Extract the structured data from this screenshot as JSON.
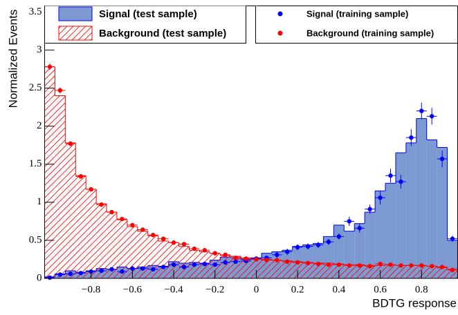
{
  "chart_data": {
    "type": "histogram",
    "x_label": "BDTG response",
    "y_label": "Normalized Events",
    "bins": [
      -1.025,
      -0.975,
      -0.925,
      -0.875,
      -0.825,
      -0.775,
      -0.725,
      -0.675,
      -0.625,
      -0.575,
      -0.525,
      -0.475,
      -0.425,
      -0.375,
      -0.325,
      -0.275,
      -0.225,
      -0.175,
      -0.125,
      -0.075,
      -0.025,
      0.025,
      0.075,
      0.125,
      0.175,
      0.225,
      0.275,
      0.325,
      0.375,
      0.425,
      0.475,
      0.525,
      0.575,
      0.625,
      0.675,
      0.725,
      0.775,
      0.825,
      0.875,
      0.925,
      0.975
    ],
    "xlim": [
      -1.025,
      0.975
    ],
    "ylim": [
      0,
      3.58
    ],
    "xticks": [
      {
        "value": -0.8,
        "label": "−0.8"
      },
      {
        "value": -0.6,
        "label": "−0.6"
      },
      {
        "value": -0.4,
        "label": "−0.4"
      },
      {
        "value": -0.2,
        "label": "−0.2"
      },
      0,
      0.2,
      0.4,
      0.6,
      0.8
    ],
    "yticks": [
      0,
      0.5,
      1,
      1.5,
      2,
      2.5,
      3,
      3.5
    ],
    "series": [
      {
        "name": "Signal (test sample)",
        "style": "filled",
        "color": "#7d99d1",
        "edge_color": "#0000ee",
        "values": [
          0.02,
          0.06,
          0.1,
          0.08,
          0.1,
          0.13,
          0.12,
          0.15,
          0.13,
          0.15,
          0.17,
          0.16,
          0.22,
          0.2,
          0.21,
          0.2,
          0.24,
          0.28,
          0.29,
          0.25,
          0.27,
          0.33,
          0.35,
          0.37,
          0.42,
          0.44,
          0.46,
          0.55,
          0.7,
          0.62,
          0.72,
          0.87,
          1.15,
          1.25,
          1.65,
          1.78,
          2.1,
          1.82,
          1.72,
          0.5
        ]
      },
      {
        "name": "Background (test sample)",
        "style": "hatched",
        "color": "#ff0000",
        "values": [
          2.78,
          2.4,
          1.78,
          1.35,
          1.17,
          0.98,
          0.87,
          0.77,
          0.68,
          0.62,
          0.56,
          0.49,
          0.47,
          0.42,
          0.37,
          0.35,
          0.33,
          0.3,
          0.29,
          0.27,
          0.26,
          0.25,
          0.24,
          0.23,
          0.22,
          0.21,
          0.2,
          0.2,
          0.19,
          0.18,
          0.18,
          0.17,
          0.17,
          0.18,
          0.17,
          0.17,
          0.17,
          0.16,
          0.14,
          0.12
        ]
      },
      {
        "name": "Signal (training sample)",
        "style": "points",
        "color": "#0000ff",
        "values": [
          0.01,
          0.05,
          0.06,
          0.07,
          0.09,
          0.1,
          0.12,
          0.09,
          0.13,
          0.13,
          0.12,
          0.15,
          0.18,
          0.15,
          0.18,
          0.19,
          0.18,
          0.21,
          0.22,
          0.23,
          0.26,
          0.27,
          0.31,
          0.35,
          0.41,
          0.42,
          0.44,
          0.48,
          0.55,
          0.75,
          0.66,
          0.91,
          1.06,
          1.35,
          1.27,
          1.85,
          2.2,
          2.13,
          1.57,
          0.52
        ],
        "errors": [
          0.02,
          0.02,
          0.02,
          0.02,
          0.02,
          0.02,
          0.02,
          0.02,
          0.02,
          0.02,
          0.02,
          0.02,
          0.02,
          0.02,
          0.02,
          0.02,
          0.02,
          0.02,
          0.02,
          0.02,
          0.02,
          0.02,
          0.04,
          0.04,
          0.04,
          0.04,
          0.04,
          0.04,
          0.04,
          0.06,
          0.06,
          0.06,
          0.09,
          0.09,
          0.09,
          0.11,
          0.11,
          0.11,
          0.11,
          0.04
        ]
      },
      {
        "name": "Background (training sample)",
        "style": "points",
        "color": "#ff0000",
        "values": [
          2.78,
          2.47,
          1.77,
          1.34,
          1.17,
          0.97,
          0.87,
          0.78,
          0.7,
          0.64,
          0.57,
          0.52,
          0.47,
          0.45,
          0.39,
          0.37,
          0.33,
          0.31,
          0.27,
          0.26,
          0.25,
          0.24,
          0.24,
          0.22,
          0.21,
          0.2,
          0.19,
          0.18,
          0.18,
          0.17,
          0.17,
          0.16,
          0.19,
          0.18,
          0.17,
          0.17,
          0.17,
          0.16,
          0.15,
          0.11
        ],
        "errors": [
          0.04,
          0.04,
          0.03,
          0.03,
          0.02,
          0.02,
          0.02,
          0.02,
          0.02,
          0.02,
          0.02,
          0.02,
          0.02,
          0.02,
          0.02,
          0.02,
          0.02,
          0.02,
          0.02,
          0.02,
          0.02,
          0.02,
          0.02,
          0.02,
          0.02,
          0.02,
          0.02,
          0.02,
          0.02,
          0.02,
          0.02,
          0.02,
          0.02,
          0.02,
          0.02,
          0.02,
          0.02,
          0.02,
          0.02,
          0.02
        ]
      }
    ]
  }
}
